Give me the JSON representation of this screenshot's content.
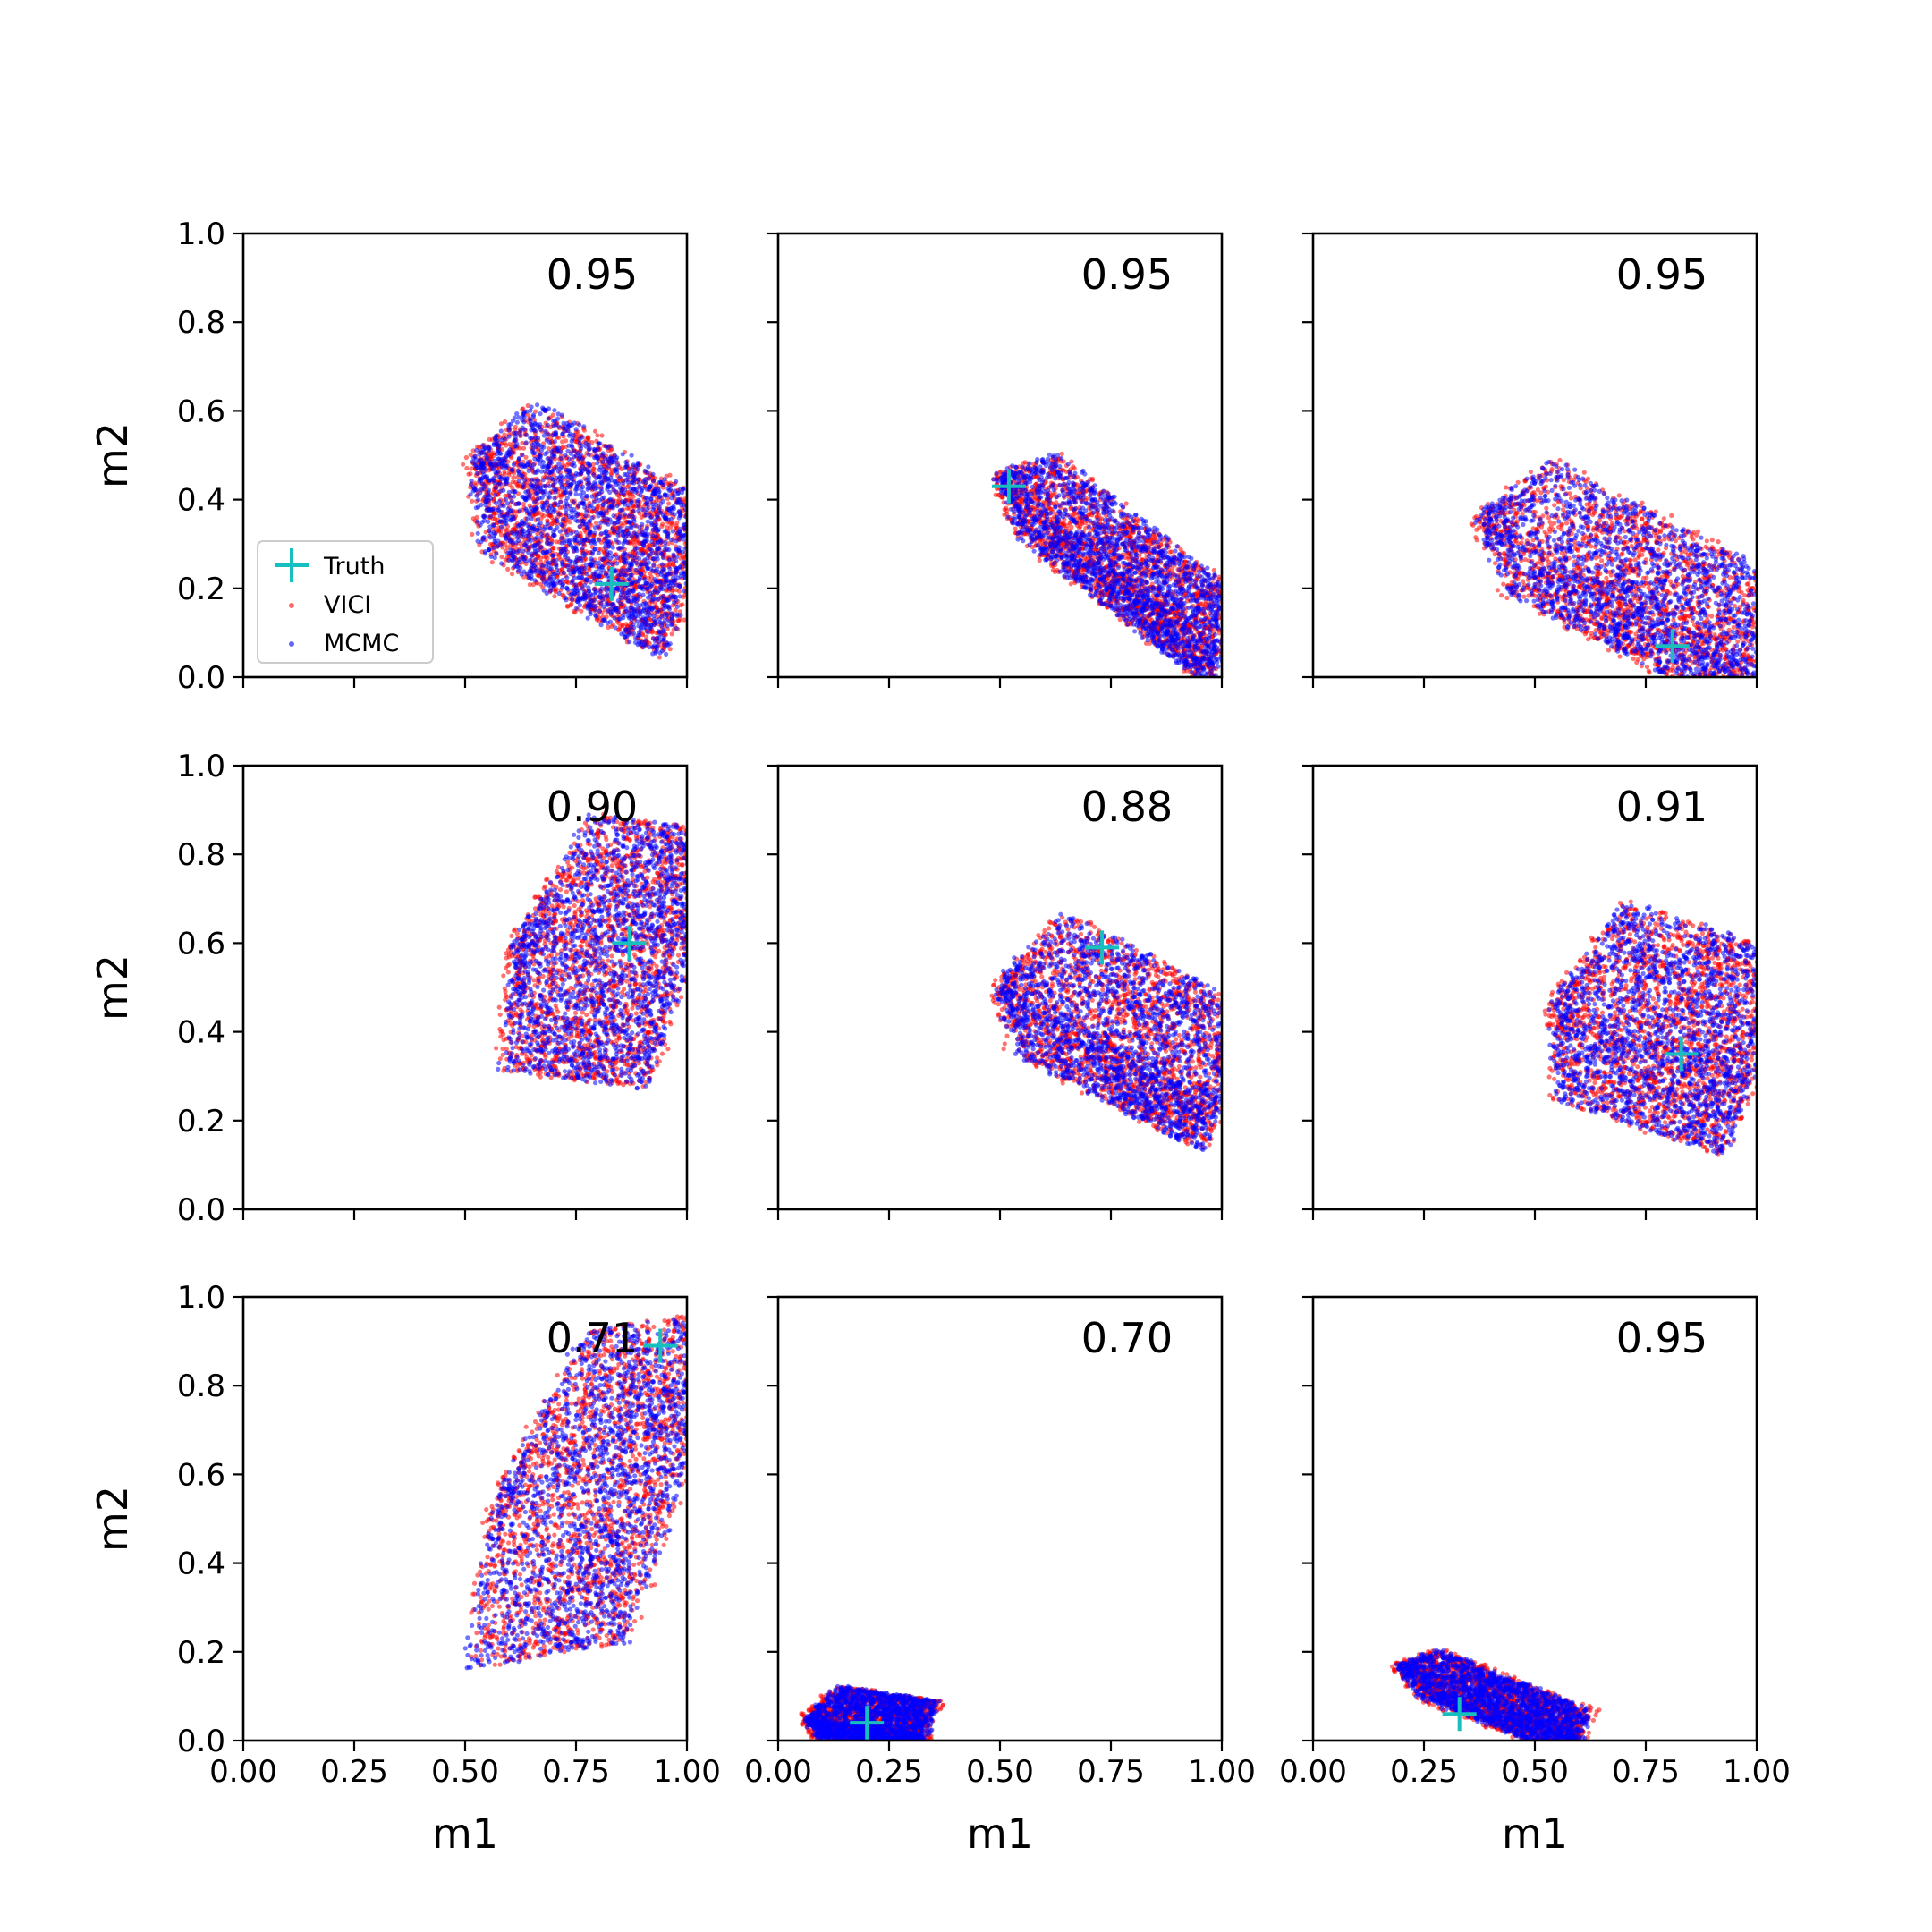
{
  "chart_data": {
    "type": "scatter",
    "grid": false,
    "xlabel": "m1",
    "ylabel": "m2",
    "xlim": [
      0,
      1
    ],
    "ylim": [
      0,
      1
    ],
    "x_ticks": [
      "0.00",
      "0.25",
      "0.50",
      "0.75",
      "1.00"
    ],
    "y_ticks": [
      "0.0",
      "0.2",
      "0.4",
      "0.6",
      "0.8",
      "1.0"
    ],
    "legend": {
      "placement": "lower-left of first panel",
      "entries": [
        {
          "name": "Truth",
          "marker": "plus",
          "color": "#17bfbf"
        },
        {
          "name": "VICI",
          "marker": "dot",
          "color": "#ff0000"
        },
        {
          "name": "MCMC",
          "marker": "dot",
          "color": "#0000ff"
        }
      ]
    },
    "colors": {
      "vici": "#ff0000",
      "mcmc": "#0000ff",
      "truth": "#17bfbf"
    },
    "panels": [
      {
        "overlap": "0.95",
        "truth": [
          0.83,
          0.21
        ],
        "cloud": {
          "start": [
            0.52,
            0.49
          ],
          "end": [
            1.0,
            0.2
          ],
          "spread_up": 0.18,
          "spread_down": 0.16
        }
      },
      {
        "overlap": "0.95",
        "truth": [
          0.52,
          0.43
        ],
        "cloud": {
          "start": [
            0.5,
            0.45
          ],
          "end": [
            1.0,
            0.06
          ],
          "spread_up": 0.12,
          "spread_down": 0.08
        }
      },
      {
        "overlap": "0.95",
        "truth": [
          0.81,
          0.07
        ],
        "cloud": {
          "start": [
            0.38,
            0.36
          ],
          "end": [
            1.0,
            0.04
          ],
          "spread_up": 0.18,
          "spread_down": 0.12
        }
      },
      {
        "overlap": "0.90",
        "truth": [
          0.87,
          0.6
        ],
        "cloud": {
          "start": [
            0.62,
            0.6
          ],
          "end": [
            1.0,
            0.55
          ],
          "spread_up": 0.3,
          "spread_down": 0.28
        }
      },
      {
        "overlap": "0.88",
        "truth": [
          0.73,
          0.59
        ],
        "cloud": {
          "start": [
            0.5,
            0.51
          ],
          "end": [
            1.0,
            0.25
          ],
          "spread_up": 0.2,
          "spread_down": 0.12
        }
      },
      {
        "overlap": "0.91",
        "truth": [
          0.83,
          0.35
        ],
        "cloud": {
          "start": [
            0.55,
            0.47
          ],
          "end": [
            1.0,
            0.32
          ],
          "spread_up": 0.25,
          "spread_down": 0.2
        }
      },
      {
        "overlap": "0.71",
        "truth": [
          0.94,
          0.89
        ],
        "cloud": {
          "start": [
            0.58,
            0.55
          ],
          "end": [
            1.0,
            0.62
          ],
          "spread_up": 0.36,
          "spread_down": 0.4
        }
      },
      {
        "overlap": "0.70",
        "truth": [
          0.2,
          0.04
        ],
        "cloud": {
          "start": [
            0.07,
            0.05
          ],
          "end": [
            0.33,
            0.01
          ],
          "spread_up": 0.08,
          "spread_down": 0.04
        }
      },
      {
        "overlap": "0.95",
        "truth": [
          0.33,
          0.06
        ],
        "cloud": {
          "start": [
            0.2,
            0.17
          ],
          "end": [
            0.6,
            0.01
          ],
          "spread_up": 0.06,
          "spread_down": 0.05
        }
      }
    ]
  }
}
